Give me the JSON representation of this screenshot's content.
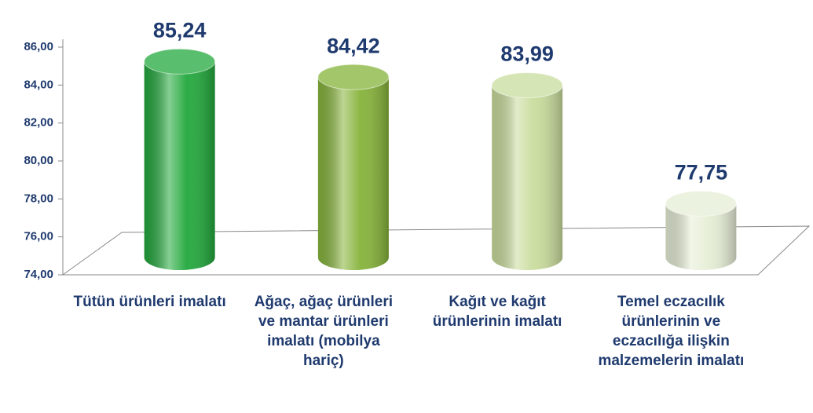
{
  "chart_data": {
    "type": "bar",
    "categories": [
      "Tütün ürünleri imalatı",
      "Ağaç, ağaç ürünleri ve mantar ürünleri imalatı (mobilya hariç)",
      "Kağıt ve kağıt ürünlerinin imalatı",
      "Temel eczacılık ürünlerinin ve eczacılığa ilişkin malzemelerin imalatı"
    ],
    "values": [
      85.24,
      84.42,
      83.99,
      77.75
    ],
    "value_labels": [
      "85,24",
      "84,42",
      "83,99",
      "77,75"
    ],
    "colors": [
      "#22a83c",
      "#86b33a",
      "#c9dc9c",
      "#e6eed6"
    ],
    "ylim": [
      74,
      86
    ],
    "yticks": [
      {
        "value": 74,
        "label": "74,00"
      },
      {
        "value": 76,
        "label": "76,00"
      },
      {
        "value": 78,
        "label": "78,00"
      },
      {
        "value": 80,
        "label": "80,00"
      },
      {
        "value": 82,
        "label": "82,00"
      },
      {
        "value": 84,
        "label": "84,00"
      },
      {
        "value": 86,
        "label": "86,00"
      }
    ]
  }
}
